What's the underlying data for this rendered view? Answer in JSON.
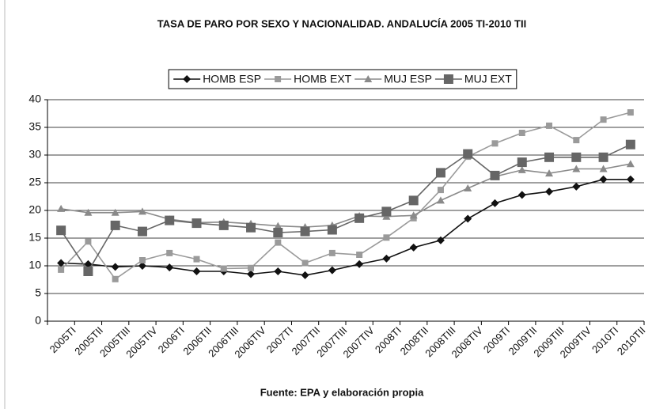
{
  "chart_data": {
    "type": "line",
    "title": "TASA DE PARO POR SEXO Y NACIONALIDAD. ANDALUCÍA 2005 TI-2010 TII",
    "x_label": "Fuente: EPA y elaboración propia",
    "categories": [
      "2005TI",
      "2005TII",
      "2005TIII",
      "2005TIV",
      "2006TI",
      "2006TII",
      "2006TIII",
      "2006TIV",
      "2007TI",
      "2007TII",
      "2007TIII",
      "2007TIV",
      "2008TI",
      "2008TII",
      "2008TIII",
      "2008TIV",
      "2009TI",
      "2009TII",
      "2009TIII",
      "2009TIV",
      "2010TI",
      "2010TII"
    ],
    "series": [
      {
        "name": "HOMB ESP",
        "color": "#111111",
        "marker": "diamond",
        "values": [
          10.5,
          10.3,
          9.8,
          10.0,
          9.7,
          9.0,
          9.0,
          8.5,
          9.0,
          8.3,
          9.2,
          10.3,
          11.3,
          13.3,
          14.6,
          18.5,
          21.3,
          22.8,
          23.4,
          24.3,
          25.6,
          25.6
        ]
      },
      {
        "name": "HOMB EXT",
        "color": "#9a9a9a",
        "marker": "square",
        "values": [
          9.3,
          14.4,
          7.6,
          11.0,
          12.3,
          11.2,
          9.5,
          9.6,
          14.2,
          10.5,
          12.3,
          12.0,
          15.1,
          18.6,
          23.7,
          29.7,
          32.1,
          34.0,
          35.3,
          32.7,
          36.4,
          37.7
        ]
      },
      {
        "name": "MUJ ESP",
        "color": "#8a8a8a",
        "marker": "triangle",
        "values": [
          20.3,
          19.6,
          19.6,
          19.8,
          18.4,
          17.8,
          17.9,
          17.6,
          17.2,
          17.0,
          17.3,
          19.0,
          18.9,
          19.1,
          21.8,
          24.0,
          26.1,
          27.3,
          26.7,
          27.5,
          27.5,
          28.4
        ]
      },
      {
        "name": "MUJ EXT",
        "color": "#666666",
        "marker": "bigsquare",
        "values": [
          16.4,
          9.0,
          17.3,
          16.2,
          18.2,
          17.7,
          17.3,
          16.9,
          16.0,
          16.2,
          16.5,
          18.6,
          19.8,
          21.8,
          26.8,
          30.2,
          26.3,
          28.7,
          29.6,
          29.6,
          29.6,
          31.9
        ]
      }
    ],
    "ylim": [
      0,
      40
    ],
    "yticks": [
      0,
      5,
      10,
      15,
      20,
      25,
      30,
      35,
      40
    ],
    "grid": true,
    "legend": "top"
  }
}
